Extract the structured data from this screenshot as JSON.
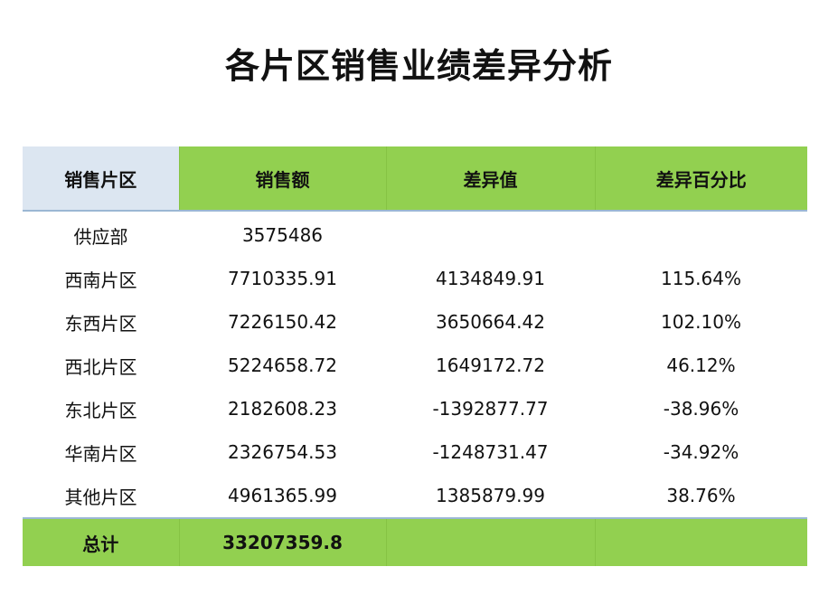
{
  "title": "各片区销售业绩差异分析",
  "header": [
    "销售片区",
    "销售额",
    "差异值",
    "差异百分比"
  ],
  "rows": [
    [
      "供应部",
      "3575486",
      "",
      ""
    ],
    [
      "西南片区",
      "7710335.91",
      "4134849.91",
      "115.64%"
    ],
    [
      "东西片区",
      "7226150.42",
      "3650664.42",
      "102.10%"
    ],
    [
      "西北片区",
      "5224658.72",
      "1649172.72",
      "46.12%"
    ],
    [
      "东北片区",
      "2182608.23",
      "-1392877.77",
      "-38.96%"
    ],
    [
      "华南片区",
      "2326754.53",
      "-1248731.47",
      "-34.92%"
    ],
    [
      "其他片区",
      "4961365.99",
      "1385879.99",
      "38.76%"
    ]
  ],
  "total": [
    "总计",
    "33207359.8",
    "",
    ""
  ],
  "colors": {
    "header_green": "#92d050",
    "header_first": "#dce6f1",
    "rule": "#9bb7d4"
  }
}
